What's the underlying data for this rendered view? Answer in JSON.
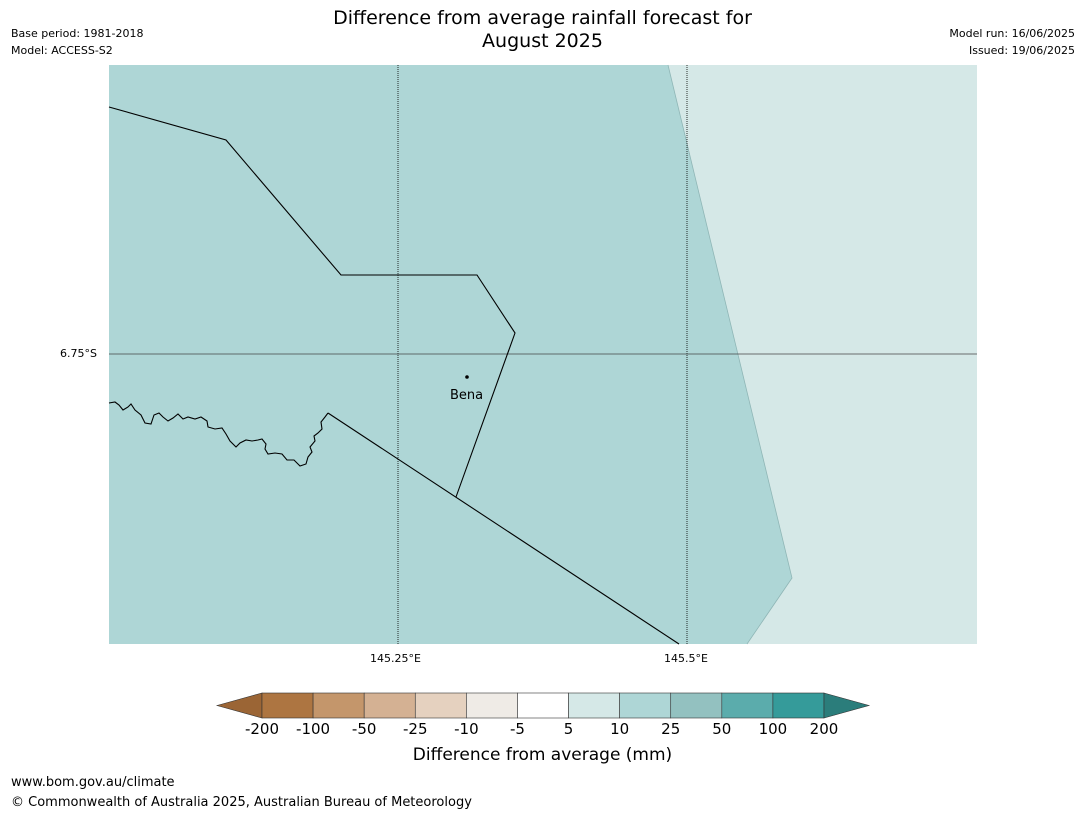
{
  "header": {
    "title_line1": "Difference from average rainfall forecast for",
    "title_line2": "August 2025",
    "base_period": "Base period: 1981-2018",
    "model": "Model: ACCESS-S2",
    "model_run": "Model run: 16/06/2025",
    "issued": "Issued: 19/06/2025"
  },
  "map": {
    "lat_label": "6.75°S",
    "lon_labels": [
      "145.25°E",
      "145.5°E"
    ],
    "place_label": "Bena",
    "region_colors": {
      "range_10_25": "#aed6d6",
      "range_5_10": "#d5e8e7"
    }
  },
  "colorbar": {
    "ticks": [
      "-200",
      "-100",
      "-50",
      "-25",
      "-10",
      "-5",
      "5",
      "10",
      "25",
      "50",
      "100",
      "200"
    ],
    "colors": [
      "#9b6535",
      "#ad7541",
      "#c4966b",
      "#d4b193",
      "#e5d1bf",
      "#efebe6",
      "#ffffff",
      "#d5e8e7",
      "#aed6d6",
      "#93c1c0",
      "#5bacac",
      "#359b9a",
      "#2b7d7b"
    ],
    "title": "Difference from average (mm)"
  },
  "footer": {
    "url": "www.bom.gov.au/climate",
    "copyright": "© Commonwealth of Australia 2025, Australian Bureau of Meteorology"
  }
}
